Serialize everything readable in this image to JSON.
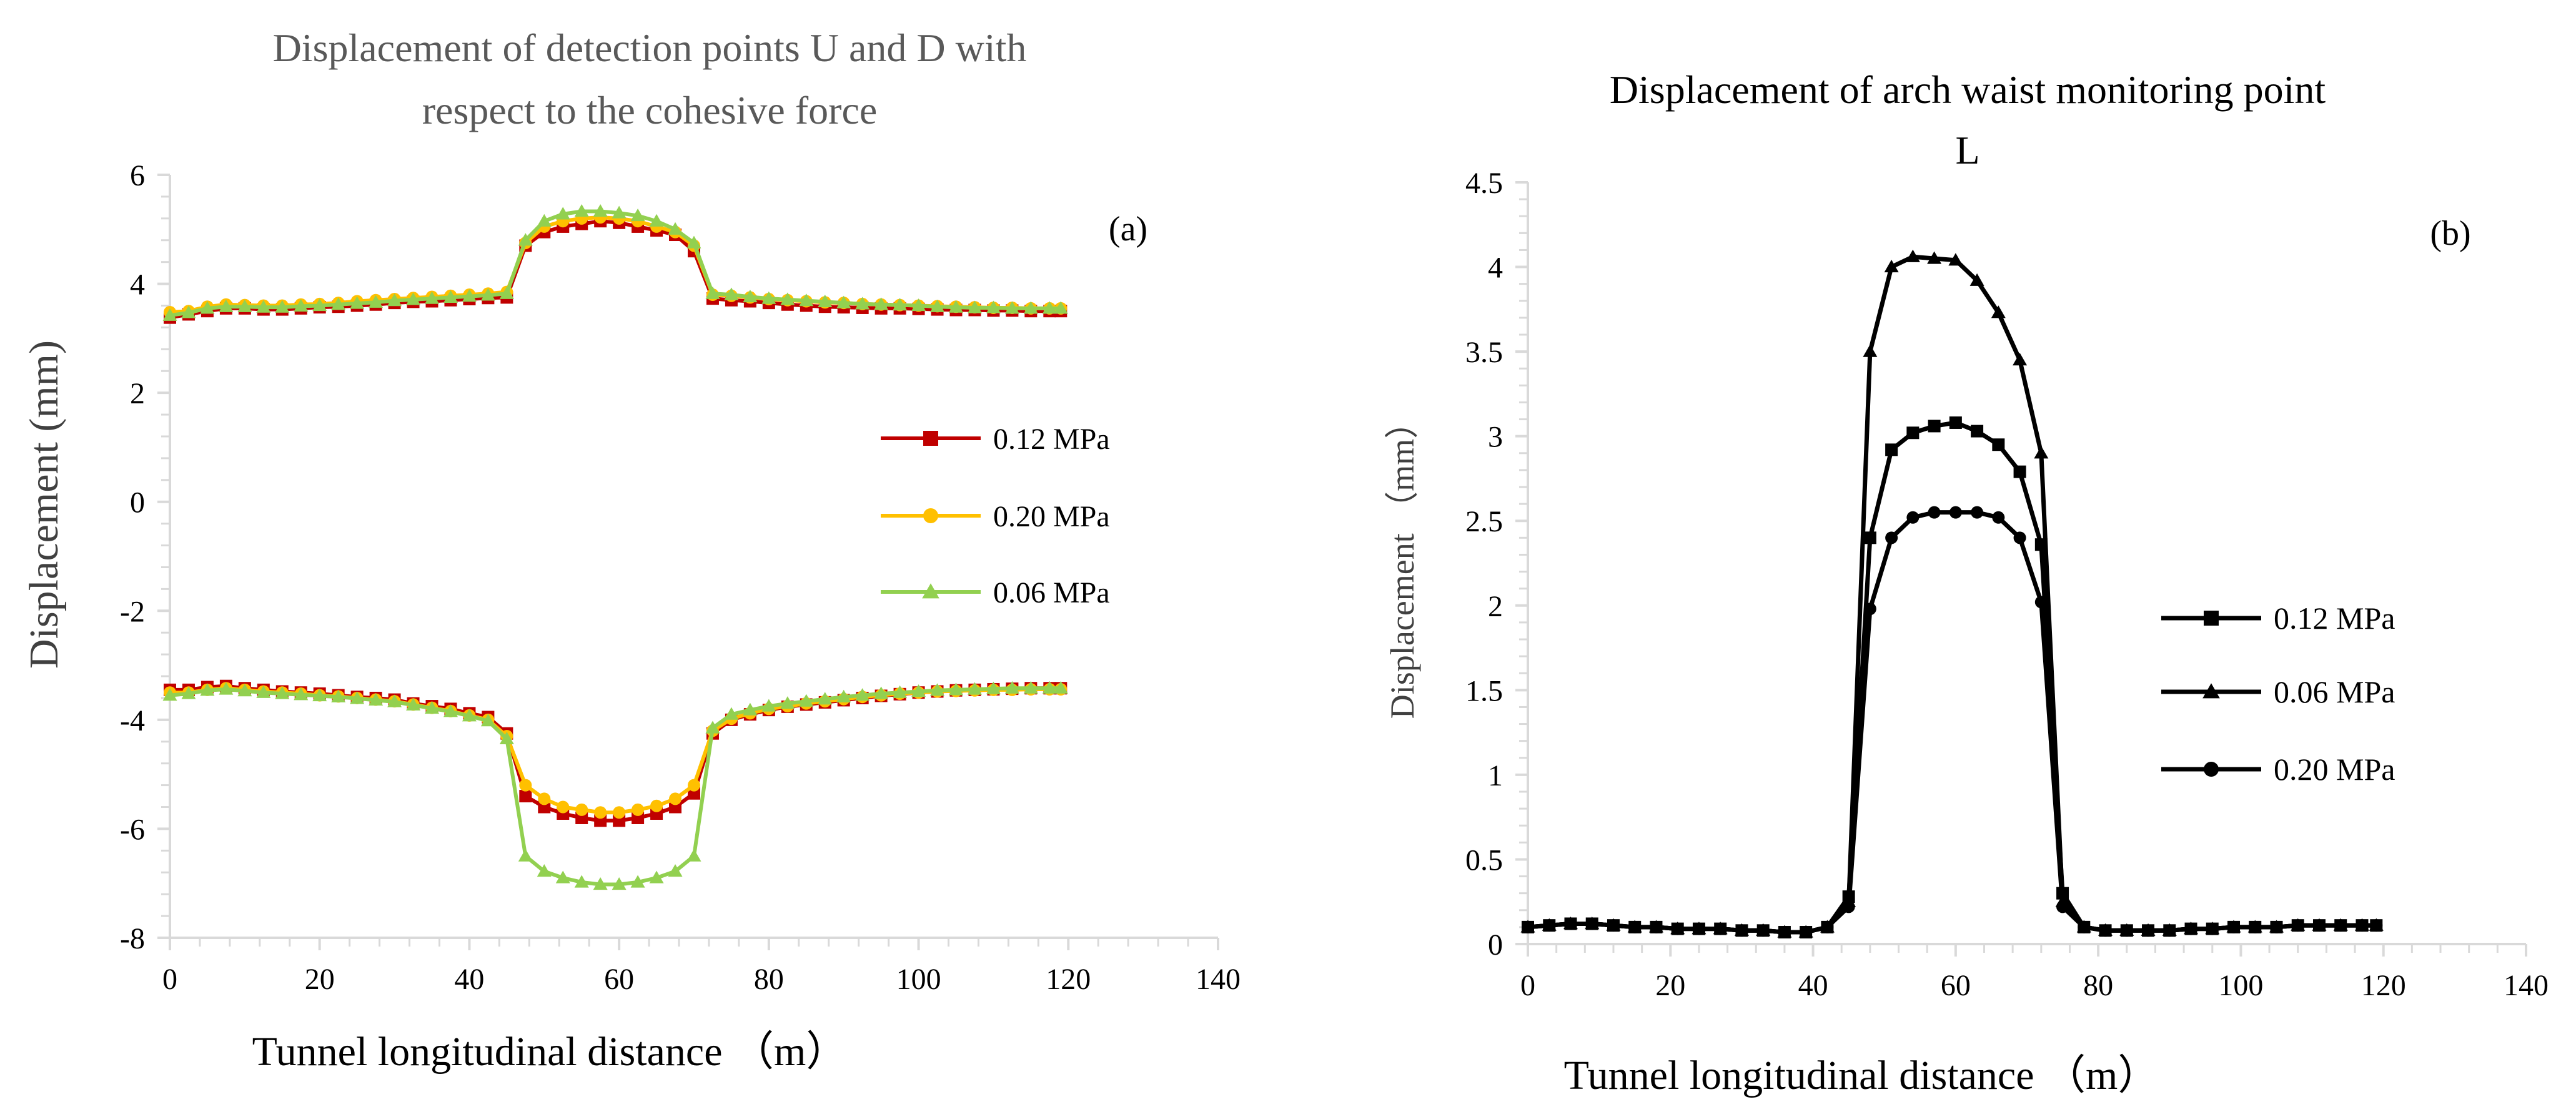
{
  "chart_data": [
    {
      "type": "line",
      "panel_label": "(a)",
      "title_lines": [
        "Displacement of detection points U and D with",
        "respect to the cohesive force"
      ],
      "xlabel": "Tunnel longitudinal distance （m）",
      "ylabel": "Displacement (mm)",
      "xlim": [
        0,
        140
      ],
      "ylim": [
        -8,
        6
      ],
      "xticks": [
        0,
        20,
        40,
        60,
        80,
        100,
        120,
        140
      ],
      "yticks": [
        -8,
        -6,
        -4,
        -2,
        0,
        2,
        4,
        6
      ],
      "grid": false,
      "legend_position": "right-middle",
      "legend": [
        {
          "name": "0.12 MPa",
          "color": "#C00000",
          "marker": "square"
        },
        {
          "name": "0.20 MPa",
          "color": "#FFC000",
          "marker": "circle"
        },
        {
          "name": "0.06 MPa",
          "color": "#92D050",
          "marker": "triangle"
        }
      ],
      "series": [
        {
          "name": "0.12 MPa",
          "group": "U",
          "color": "#C00000",
          "marker": "square",
          "x": [
            0,
            2.5,
            5,
            7.5,
            10,
            12.5,
            15,
            17.5,
            20,
            22.5,
            25,
            27.5,
            30,
            32.5,
            35,
            37.5,
            40,
            42.5,
            45,
            47.5,
            50,
            52.5,
            55,
            57.5,
            60,
            62.5,
            65,
            67.5,
            70,
            72.5,
            75,
            77.5,
            80,
            82.5,
            85,
            87.5,
            90,
            92.5,
            95,
            97.5,
            100,
            102.5,
            105,
            107.5,
            110,
            112.5,
            115,
            117.5,
            119
          ],
          "values": [
            3.38,
            3.44,
            3.5,
            3.55,
            3.55,
            3.53,
            3.53,
            3.55,
            3.57,
            3.58,
            3.6,
            3.62,
            3.65,
            3.67,
            3.68,
            3.7,
            3.72,
            3.74,
            3.75,
            4.7,
            4.95,
            5.05,
            5.1,
            5.15,
            5.12,
            5.05,
            4.98,
            4.9,
            4.6,
            3.73,
            3.7,
            3.68,
            3.65,
            3.62,
            3.6,
            3.58,
            3.57,
            3.56,
            3.55,
            3.55,
            3.54,
            3.53,
            3.52,
            3.52,
            3.51,
            3.51,
            3.5,
            3.5,
            3.5
          ]
        },
        {
          "name": "0.20 MPa",
          "group": "U",
          "color": "#FFC000",
          "marker": "circle",
          "x": [
            0,
            2.5,
            5,
            7.5,
            10,
            12.5,
            15,
            17.5,
            20,
            22.5,
            25,
            27.5,
            30,
            32.5,
            35,
            37.5,
            40,
            42.5,
            45,
            47.5,
            50,
            52.5,
            55,
            57.5,
            60,
            62.5,
            65,
            67.5,
            70,
            72.5,
            75,
            77.5,
            80,
            82.5,
            85,
            87.5,
            90,
            92.5,
            95,
            97.5,
            100,
            102.5,
            105,
            107.5,
            110,
            112.5,
            115,
            117.5,
            119
          ],
          "values": [
            3.48,
            3.5,
            3.58,
            3.62,
            3.61,
            3.6,
            3.6,
            3.62,
            3.63,
            3.65,
            3.68,
            3.7,
            3.72,
            3.74,
            3.76,
            3.78,
            3.8,
            3.82,
            3.85,
            4.75,
            5.05,
            5.15,
            5.2,
            5.22,
            5.2,
            5.15,
            5.05,
            4.95,
            4.7,
            3.8,
            3.78,
            3.75,
            3.72,
            3.7,
            3.68,
            3.66,
            3.65,
            3.63,
            3.62,
            3.61,
            3.6,
            3.59,
            3.58,
            3.57,
            3.56,
            3.56,
            3.55,
            3.55,
            3.55
          ]
        },
        {
          "name": "0.06 MPa",
          "group": "U",
          "color": "#92D050",
          "marker": "triangle",
          "x": [
            0,
            2.5,
            5,
            7.5,
            10,
            12.5,
            15,
            17.5,
            20,
            22.5,
            25,
            27.5,
            30,
            32.5,
            35,
            37.5,
            40,
            42.5,
            45,
            47.5,
            50,
            52.5,
            55,
            57.5,
            60,
            62.5,
            65,
            67.5,
            70,
            72.5,
            75,
            77.5,
            80,
            82.5,
            85,
            87.5,
            90,
            92.5,
            95,
            97.5,
            100,
            102.5,
            105,
            107.5,
            110,
            112.5,
            115,
            117.5,
            119
          ],
          "values": [
            3.42,
            3.47,
            3.55,
            3.58,
            3.58,
            3.57,
            3.57,
            3.59,
            3.6,
            3.62,
            3.64,
            3.66,
            3.69,
            3.71,
            3.73,
            3.75,
            3.77,
            3.79,
            3.82,
            4.8,
            5.15,
            5.28,
            5.33,
            5.33,
            5.3,
            5.25,
            5.15,
            5.0,
            4.75,
            3.82,
            3.8,
            3.76,
            3.73,
            3.71,
            3.69,
            3.67,
            3.65,
            3.63,
            3.62,
            3.61,
            3.6,
            3.58,
            3.57,
            3.56,
            3.56,
            3.55,
            3.55,
            3.55,
            3.55
          ]
        },
        {
          "name": "0.12 MPa",
          "group": "D",
          "color": "#C00000",
          "marker": "square",
          "x": [
            0,
            2.5,
            5,
            7.5,
            10,
            12.5,
            15,
            17.5,
            20,
            22.5,
            25,
            27.5,
            30,
            32.5,
            35,
            37.5,
            40,
            42.5,
            45,
            47.5,
            50,
            52.5,
            55,
            57.5,
            60,
            62.5,
            65,
            67.5,
            70,
            72.5,
            75,
            77.5,
            80,
            82.5,
            85,
            87.5,
            90,
            92.5,
            95,
            97.5,
            100,
            102.5,
            105,
            107.5,
            110,
            112.5,
            115,
            117.5,
            119
          ],
          "values": [
            -3.45,
            -3.45,
            -3.4,
            -3.38,
            -3.42,
            -3.45,
            -3.48,
            -3.5,
            -3.52,
            -3.55,
            -3.58,
            -3.6,
            -3.63,
            -3.7,
            -3.75,
            -3.8,
            -3.88,
            -3.95,
            -4.25,
            -5.4,
            -5.6,
            -5.72,
            -5.8,
            -5.85,
            -5.85,
            -5.8,
            -5.72,
            -5.6,
            -5.35,
            -4.25,
            -4.0,
            -3.9,
            -3.82,
            -3.76,
            -3.72,
            -3.68,
            -3.64,
            -3.6,
            -3.56,
            -3.53,
            -3.5,
            -3.48,
            -3.46,
            -3.45,
            -3.44,
            -3.43,
            -3.42,
            -3.42,
            -3.42
          ]
        },
        {
          "name": "0.20 MPa",
          "group": "D",
          "color": "#FFC000",
          "marker": "circle",
          "x": [
            0,
            2.5,
            5,
            7.5,
            10,
            12.5,
            15,
            17.5,
            20,
            22.5,
            25,
            27.5,
            30,
            32.5,
            35,
            37.5,
            40,
            42.5,
            45,
            47.5,
            50,
            52.5,
            55,
            57.5,
            60,
            62.5,
            65,
            67.5,
            70,
            72.5,
            75,
            77.5,
            80,
            82.5,
            85,
            87.5,
            90,
            92.5,
            95,
            97.5,
            100,
            102.5,
            105,
            107.5,
            110,
            112.5,
            115,
            117.5,
            119
          ],
          "values": [
            -3.5,
            -3.5,
            -3.45,
            -3.42,
            -3.45,
            -3.48,
            -3.5,
            -3.52,
            -3.55,
            -3.57,
            -3.6,
            -3.63,
            -3.66,
            -3.72,
            -3.78,
            -3.84,
            -3.92,
            -4.0,
            -4.3,
            -5.2,
            -5.45,
            -5.6,
            -5.65,
            -5.7,
            -5.7,
            -5.65,
            -5.58,
            -5.45,
            -5.2,
            -4.2,
            -3.98,
            -3.88,
            -3.8,
            -3.75,
            -3.7,
            -3.66,
            -3.62,
            -3.58,
            -3.55,
            -3.52,
            -3.5,
            -3.48,
            -3.47,
            -3.46,
            -3.45,
            -3.45,
            -3.44,
            -3.44,
            -3.44
          ]
        },
        {
          "name": "0.06 MPa",
          "group": "D",
          "color": "#92D050",
          "marker": "triangle",
          "x": [
            0,
            2.5,
            5,
            7.5,
            10,
            12.5,
            15,
            17.5,
            20,
            22.5,
            25,
            27.5,
            30,
            32.5,
            35,
            37.5,
            40,
            42.5,
            45,
            47.5,
            50,
            52.5,
            55,
            57.5,
            60,
            62.5,
            65,
            67.5,
            70,
            72.5,
            75,
            77.5,
            80,
            82.5,
            85,
            87.5,
            90,
            92.5,
            95,
            97.5,
            100,
            102.5,
            105,
            107.5,
            110,
            112.5,
            115,
            117.5,
            119
          ],
          "values": [
            -3.55,
            -3.52,
            -3.46,
            -3.44,
            -3.47,
            -3.5,
            -3.52,
            -3.54,
            -3.56,
            -3.58,
            -3.61,
            -3.64,
            -3.67,
            -3.73,
            -3.79,
            -3.85,
            -3.93,
            -4.02,
            -4.35,
            -6.5,
            -6.78,
            -6.9,
            -6.98,
            -7.02,
            -7.02,
            -6.98,
            -6.9,
            -6.78,
            -6.5,
            -4.15,
            -3.9,
            -3.82,
            -3.75,
            -3.7,
            -3.66,
            -3.62,
            -3.58,
            -3.55,
            -3.52,
            -3.5,
            -3.48,
            -3.46,
            -3.45,
            -3.44,
            -3.43,
            -3.42,
            -3.42,
            -3.42,
            -3.42
          ]
        }
      ]
    },
    {
      "type": "line",
      "panel_label": "(b)",
      "title_lines": [
        "Displacement of arch waist monitoring point",
        "L"
      ],
      "xlabel": "Tunnel longitudinal distance （m）",
      "ylabel": "Displacement （mm）",
      "xlim": [
        0,
        140
      ],
      "ylim": [
        0,
        4.5
      ],
      "xticks": [
        0,
        20,
        40,
        60,
        80,
        100,
        120,
        140
      ],
      "yticks": [
        0,
        0.5,
        1,
        1.5,
        2,
        2.5,
        3,
        3.5,
        4,
        4.5
      ],
      "ytick_labels": [
        "0",
        "0.5",
        "1",
        "1.5",
        "2",
        "2.5",
        "3",
        "3.5",
        "4",
        "4.5"
      ],
      "grid": false,
      "legend_position": "right-middle",
      "legend": [
        {
          "name": "0.12 MPa",
          "color": "#000000",
          "marker": "square"
        },
        {
          "name": "0.06 MPa",
          "color": "#000000",
          "marker": "triangle"
        },
        {
          "name": "0.20 MPa",
          "color": "#000000",
          "marker": "circle"
        }
      ],
      "series": [
        {
          "name": "0.12 MPa",
          "color": "#000000",
          "marker": "square",
          "x": [
            0,
            3,
            6,
            9,
            12,
            15,
            18,
            21,
            24,
            27,
            30,
            33,
            36,
            39,
            42,
            45,
            48,
            51,
            54,
            57,
            60,
            63,
            66,
            69,
            72,
            75,
            78,
            81,
            84,
            87,
            90,
            93,
            96,
            99,
            102,
            105,
            108,
            111,
            114,
            117,
            119
          ],
          "values": [
            0.1,
            0.11,
            0.12,
            0.12,
            0.11,
            0.1,
            0.1,
            0.09,
            0.09,
            0.09,
            0.08,
            0.08,
            0.07,
            0.07,
            0.1,
            0.28,
            2.4,
            2.92,
            3.02,
            3.06,
            3.08,
            3.03,
            2.95,
            2.79,
            2.36,
            0.3,
            0.1,
            0.08,
            0.08,
            0.08,
            0.08,
            0.09,
            0.09,
            0.1,
            0.1,
            0.1,
            0.11,
            0.11,
            0.11,
            0.11,
            0.11
          ]
        },
        {
          "name": "0.06 MPa",
          "color": "#000000",
          "marker": "triangle",
          "x": [
            0,
            3,
            6,
            9,
            12,
            15,
            18,
            21,
            24,
            27,
            30,
            33,
            36,
            39,
            42,
            45,
            48,
            51,
            54,
            57,
            60,
            63,
            66,
            69,
            72,
            75,
            78,
            81,
            84,
            87,
            90,
            93,
            96,
            99,
            102,
            105,
            108,
            111,
            114,
            117,
            119
          ],
          "values": [
            0.1,
            0.11,
            0.12,
            0.12,
            0.11,
            0.1,
            0.1,
            0.09,
            0.09,
            0.09,
            0.08,
            0.08,
            0.07,
            0.07,
            0.1,
            0.25,
            3.5,
            4.0,
            4.06,
            4.05,
            4.04,
            3.92,
            3.73,
            3.45,
            2.9,
            0.25,
            0.1,
            0.08,
            0.08,
            0.08,
            0.08,
            0.09,
            0.09,
            0.1,
            0.1,
            0.1,
            0.11,
            0.11,
            0.11,
            0.11,
            0.11
          ]
        },
        {
          "name": "0.20 MPa",
          "color": "#000000",
          "marker": "circle",
          "x": [
            0,
            3,
            6,
            9,
            12,
            15,
            18,
            21,
            24,
            27,
            30,
            33,
            36,
            39,
            42,
            45,
            48,
            51,
            54,
            57,
            60,
            63,
            66,
            69,
            72,
            75,
            78,
            81,
            84,
            87,
            90,
            93,
            96,
            99,
            102,
            105,
            108,
            111,
            114,
            117,
            119
          ],
          "values": [
            0.1,
            0.11,
            0.12,
            0.12,
            0.11,
            0.1,
            0.1,
            0.09,
            0.09,
            0.09,
            0.08,
            0.08,
            0.07,
            0.07,
            0.1,
            0.22,
            1.98,
            2.4,
            2.52,
            2.55,
            2.55,
            2.55,
            2.52,
            2.4,
            2.02,
            0.22,
            0.1,
            0.08,
            0.08,
            0.08,
            0.08,
            0.09,
            0.09,
            0.1,
            0.1,
            0.1,
            0.11,
            0.11,
            0.11,
            0.11,
            0.11
          ]
        }
      ]
    }
  ]
}
